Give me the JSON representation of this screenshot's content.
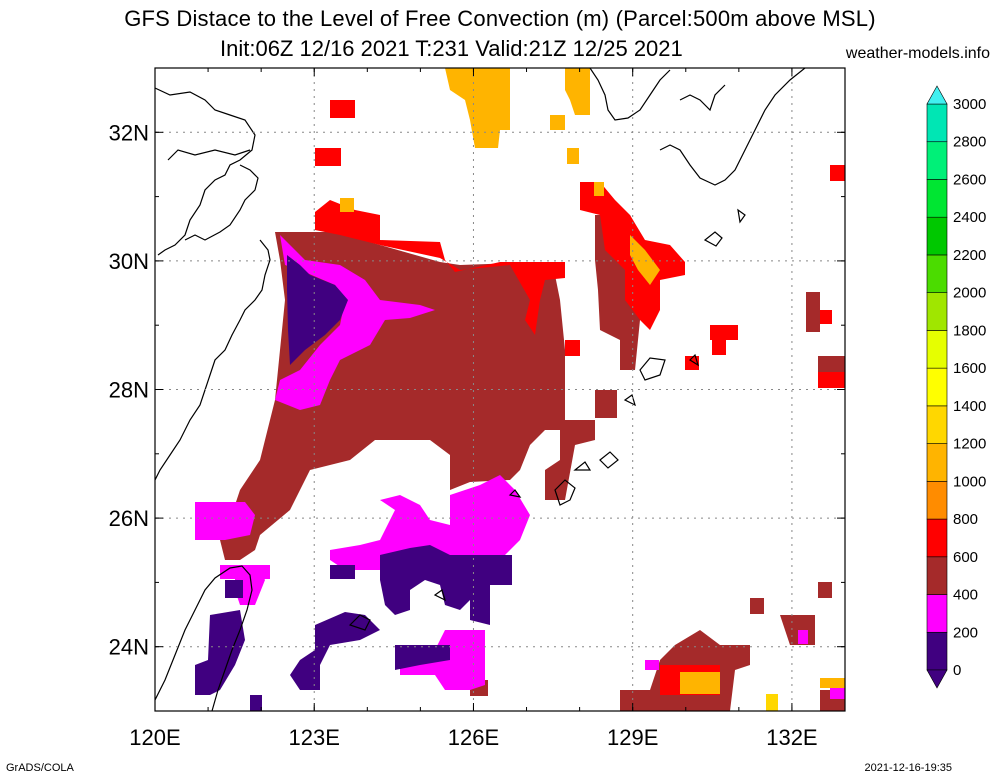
{
  "title_line1": "GFS Distace to the Level of Free Convection (m) (Parcel:500m above MSL)",
  "title_line2": "Init:06Z 12/16 2021 T:231 Valid:21Z 12/25 2021",
  "site": "weather-models.info",
  "footer_left": "GrADS/COLA",
  "footer_right": "2021-12-16-19:35",
  "map": {
    "lon_range": [
      120,
      133
    ],
    "lat_range": [
      23,
      33
    ],
    "lon_ticks": [
      {
        "value": 120,
        "label": "120E"
      },
      {
        "value": 123,
        "label": "123E"
      },
      {
        "value": 126,
        "label": "126E"
      },
      {
        "value": 129,
        "label": "129E"
      },
      {
        "value": 132,
        "label": "132E"
      }
    ],
    "lat_ticks": [
      {
        "value": 24,
        "label": "24N"
      },
      {
        "value": 26,
        "label": "26N"
      },
      {
        "value": 28,
        "label": "28N"
      },
      {
        "value": 30,
        "label": "30N"
      },
      {
        "value": 32,
        "label": "32N"
      }
    ]
  },
  "colorbar": {
    "levels": [
      {
        "label": "0",
        "color": "#400080"
      },
      {
        "label": "200",
        "color": "#ff00ff"
      },
      {
        "label": "400",
        "color": "#a52a2a"
      },
      {
        "label": "600",
        "color": "#ff0000"
      },
      {
        "label": "800",
        "color": "#ff8c00"
      },
      {
        "label": "1000",
        "color": "#ffb400"
      },
      {
        "label": "1200",
        "color": "#ffd700"
      },
      {
        "label": "1400",
        "color": "#ffff00"
      },
      {
        "label": "1600",
        "color": "#e6ff00"
      },
      {
        "label": "1800",
        "color": "#a0e600"
      },
      {
        "label": "2000",
        "color": "#4bdc00"
      },
      {
        "label": "2200",
        "color": "#00c800"
      },
      {
        "label": "2400",
        "color": "#00e632"
      },
      {
        "label": "2600",
        "color": "#00f078"
      },
      {
        "label": "2800",
        "color": "#00e6b4"
      },
      {
        "label": "3000",
        "color": "#00e6dc"
      }
    ],
    "top_triangle_color": "#40f0f0",
    "bottom_triangle_color": "#400080"
  },
  "fields": {
    "brown_region_color": "#a52a2a",
    "magenta_color": "#ff00ff",
    "purple_color": "#400080",
    "red_color": "#ff0000",
    "orange_color": "#ffb400"
  }
}
